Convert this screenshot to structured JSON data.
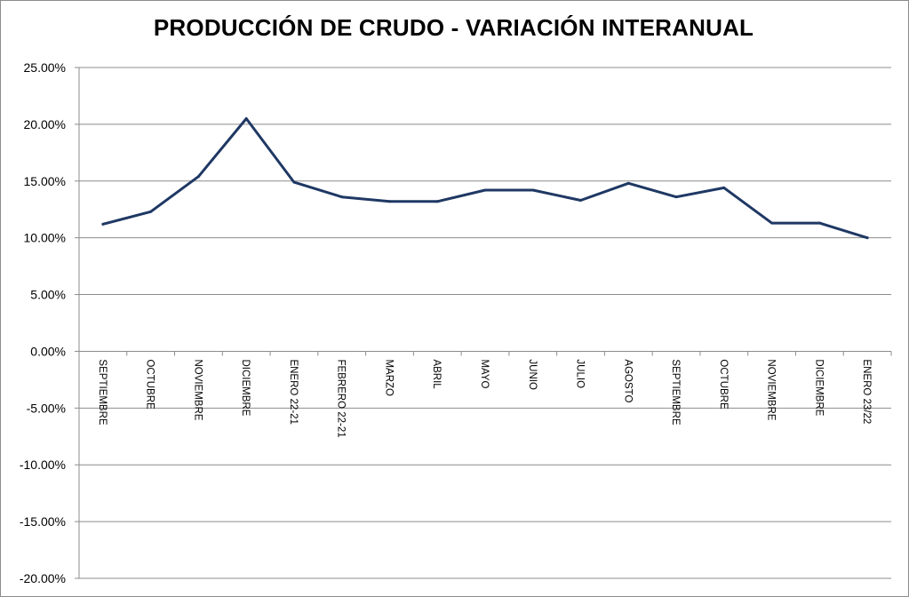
{
  "chart_data": {
    "type": "line",
    "title": "PRODUCCIÓN DE CRUDO - VARIACIÓN INTERANUAL",
    "xlabel": "",
    "ylabel": "",
    "categories": [
      "SEPTIEMBRE",
      "OCTUBRE",
      "NOVIEMBRE",
      "DICIEMBRE",
      "ENERO 22-21",
      "FEBRERO 22-21",
      "MARZO",
      "ABRIL",
      "MAYO",
      "JUNIO",
      "JULIO",
      "AGOSTO",
      "SEPTIEMBRE",
      "OCTUBRE",
      "NOVIEMBRE",
      "DICIEMBRE",
      "ENERO 23/22"
    ],
    "series": [
      {
        "values": [
          11.2,
          12.3,
          15.4,
          20.5,
          14.9,
          13.6,
          13.2,
          13.2,
          14.2,
          14.2,
          13.3,
          14.8,
          13.6,
          14.4,
          11.3,
          11.3,
          10.0
        ],
        "color": "#1f3864"
      }
    ],
    "ylim": [
      -20,
      25
    ],
    "yticks": [
      25,
      20,
      15,
      10,
      5,
      0,
      -5,
      -10,
      -15,
      -20
    ],
    "ytick_labels": [
      "25.00%",
      "20.00%",
      "15.00%",
      "10.00%",
      "5.00%",
      "0.00%",
      "-5.00%",
      "-10.00%",
      "-15.00%",
      "-20.00%"
    ],
    "grid": true,
    "legend": "none"
  }
}
